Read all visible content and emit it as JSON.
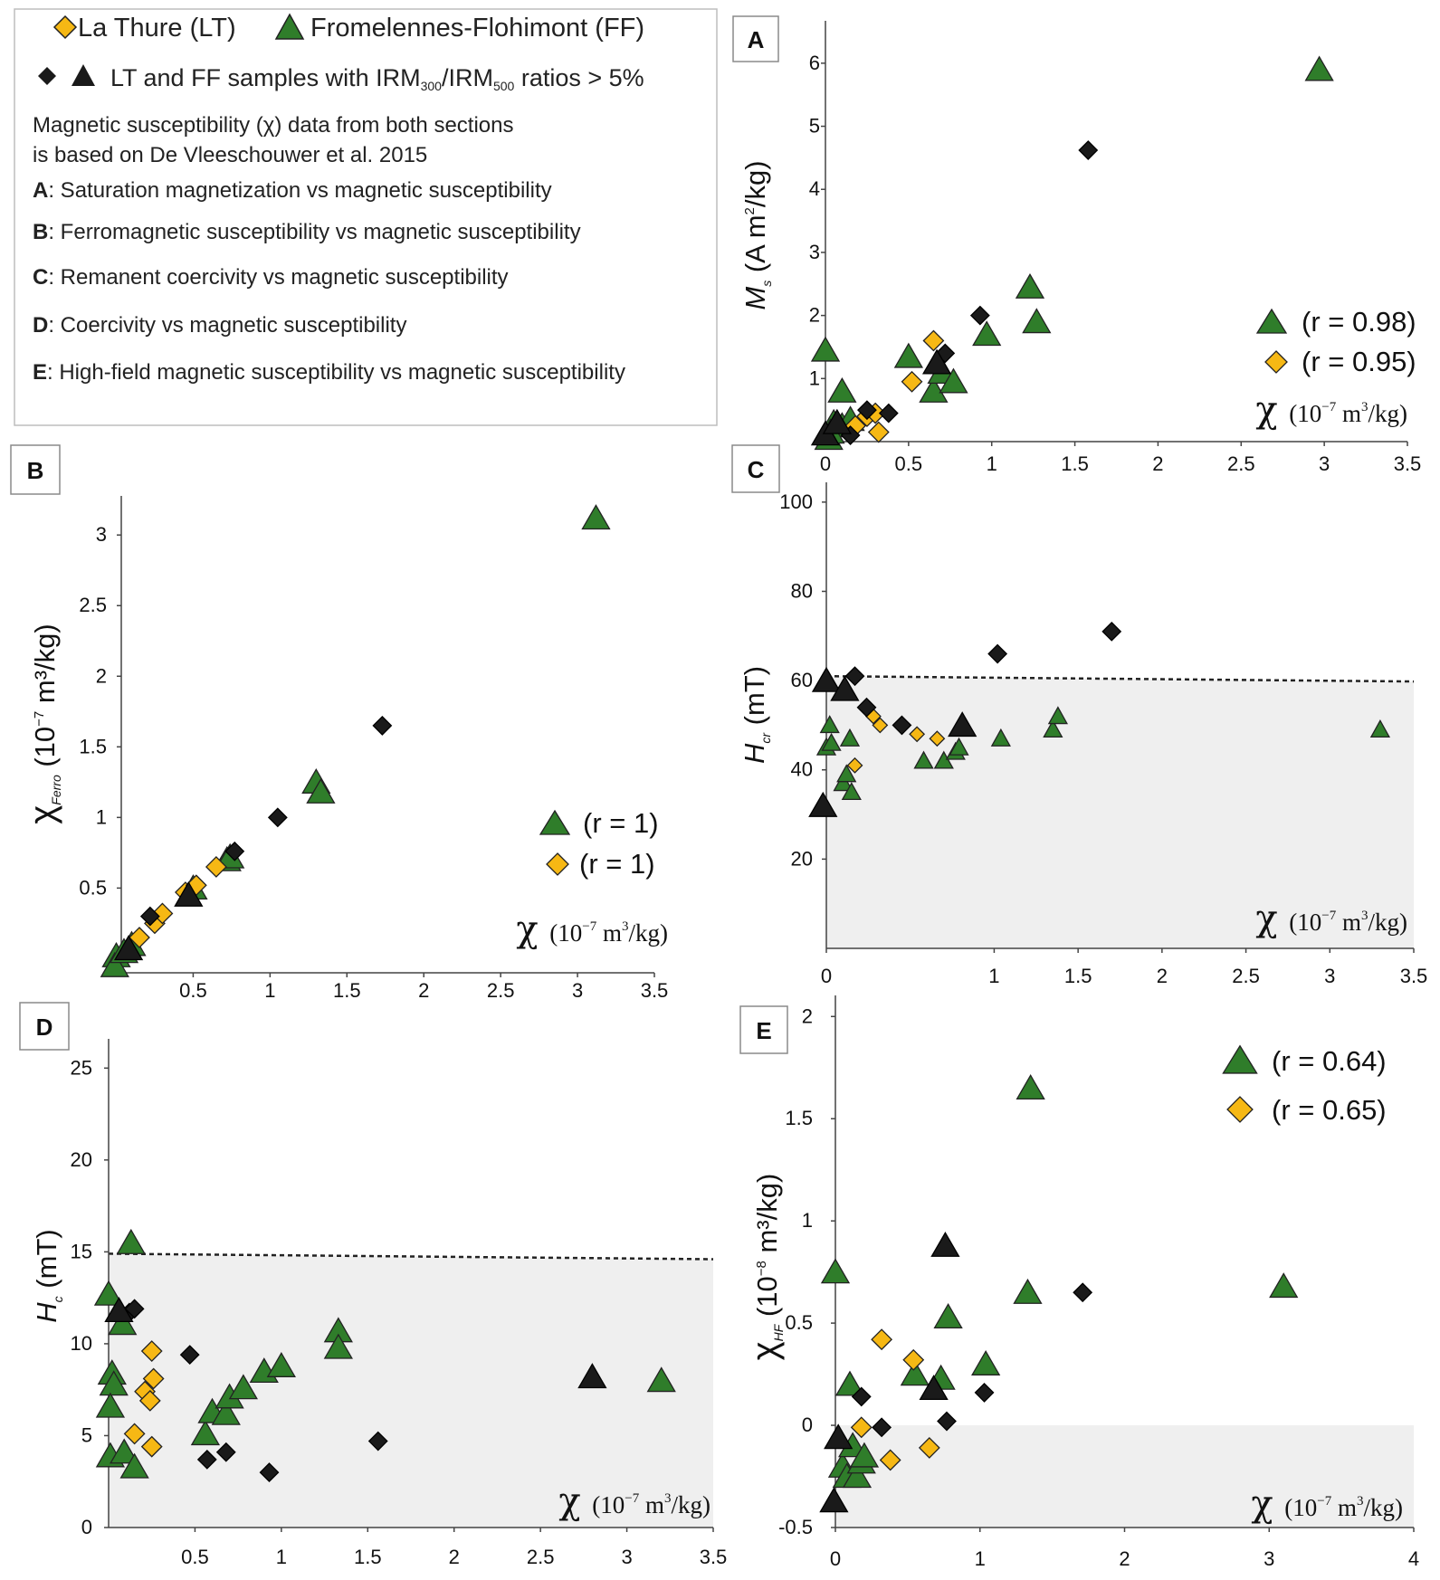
{
  "colors": {
    "lt": "#f6b814",
    "ff": "#2f7d2a",
    "dark": "#1a1a1a",
    "shade": "#efefef"
  },
  "legend": {
    "lt_label": "La Thure (LT)",
    "ff_label": "Fromelennes-Flohimont (FF)",
    "irm_prefix": "LT and FF samples with IRM",
    "irm_sub1": "300",
    "irm_slash": "/IRM",
    "irm_sub2": "500",
    "irm_suffix": " ratios > 5%",
    "note_line1": "Magnetic susceptibility (χ) data from both sections",
    "note_line2": "is based on De Vleeschouwer et al. 2015",
    "items": [
      {
        "key": "A",
        "text": ": Saturation magnetization vs magnetic susceptibility"
      },
      {
        "key": "B",
        "text": ": Ferromagnetic susceptibility vs magnetic susceptibility"
      },
      {
        "key": "C",
        "text": ": Remanent coercivity vs magnetic susceptibility"
      },
      {
        "key": "D",
        "text": ": Coercivity vs magnetic susceptibility"
      },
      {
        "key": "E",
        "text": ": High-field magnetic susceptibility vs magnetic susceptibility"
      }
    ]
  },
  "x_axis_label": {
    "chi": "χ",
    "base": "(10",
    "exp": "−7",
    "unit_pre": " m",
    "unit_exp": "3",
    "unit_post": "/kg)"
  },
  "chart_data": [
    {
      "id": "A",
      "type": "scatter",
      "ylabel": {
        "main": "M",
        "sub": "s",
        "rest": " (A m",
        "sup": "2",
        "end": "/kg)"
      },
      "xlim": [
        0,
        3.5
      ],
      "ylim": [
        0,
        6.5
      ],
      "xticks": [
        "0",
        "0.5",
        "1",
        "1.5",
        "2",
        "2.5",
        "3",
        "3.5"
      ],
      "xtick_values": [
        0,
        0.5,
        1,
        1.5,
        2,
        2.5,
        3,
        3.5
      ],
      "yticks": [
        "1",
        "2",
        "3",
        "4",
        "5",
        "6"
      ],
      "ytick_values": [
        1,
        2,
        3,
        4,
        5,
        6
      ],
      "correlations": [
        {
          "series": "FF",
          "text": "(r = 0.98)"
        },
        {
          "series": "LT",
          "text": "(r = 0.95)"
        }
      ],
      "series": [
        {
          "name": "FF",
          "marker": "triangle",
          "points": [
            [
              0,
              1.45
            ],
            [
              0.1,
              0.8
            ],
            [
              0.05,
              0.3
            ],
            [
              0.1,
              0.25
            ],
            [
              0.15,
              0.35
            ],
            [
              0.02,
              0.05
            ],
            [
              0.03,
              0.15
            ],
            [
              0.5,
              1.35
            ],
            [
              0.65,
              0.8
            ],
            [
              0.7,
              1.1
            ],
            [
              0.77,
              0.95
            ],
            [
              0.97,
              1.7
            ],
            [
              1.23,
              2.45
            ],
            [
              1.27,
              1.9
            ],
            [
              2.97,
              5.9
            ]
          ]
        },
        {
          "name": "LT",
          "marker": "diamond",
          "points": [
            [
              0.18,
              0.25
            ],
            [
              0.25,
              0.4
            ],
            [
              0.3,
              0.45
            ],
            [
              0.32,
              0.15
            ],
            [
              0.52,
              0.95
            ],
            [
              0.65,
              1.6
            ]
          ]
        },
        {
          "name": "LT/FF IRM>5%",
          "marker": "diamond-dark",
          "points": [
            [
              0.15,
              0.1
            ],
            [
              0.25,
              0.5
            ],
            [
              0.38,
              0.45
            ],
            [
              0.93,
              2.0
            ],
            [
              0.72,
              1.4
            ],
            [
              1.58,
              4.62
            ]
          ]
        },
        {
          "name": "LT/FF IRM>5%",
          "marker": "triangle-dark",
          "points": [
            [
              0,
              0.12
            ],
            [
              0.07,
              0.3
            ],
            [
              0.67,
              1.25
            ]
          ]
        }
      ]
    },
    {
      "id": "B",
      "type": "scatter",
      "ylabel": {
        "main": "χ",
        "sub": "Ferro",
        "rest": " (10",
        "sup": "−7",
        "end": " m³/kg)"
      },
      "xlim": [
        -0.05,
        3.5
      ],
      "ylim": [
        -0.1,
        3.2
      ],
      "xticks": [
        "0.5",
        "1",
        "1.5",
        "2",
        "2.5",
        "3",
        "3.5"
      ],
      "xtick_values": [
        0.5,
        1,
        1.5,
        2,
        2.5,
        3,
        3.5
      ],
      "yticks": [
        "0.5",
        "1",
        "1.5",
        "2",
        "2.5",
        "3"
      ],
      "ytick_values": [
        0.5,
        1,
        1.5,
        2,
        2.5,
        3
      ],
      "correlations": [
        {
          "series": "FF",
          "text": "(r = 1)"
        },
        {
          "series": "LT",
          "text": "(r = 1)"
        }
      ],
      "series": [
        {
          "name": "FF",
          "marker": "triangle",
          "points": [
            [
              0,
              0.02
            ],
            [
              -0.01,
              -0.05
            ],
            [
              0.05,
              0.05
            ],
            [
              0.1,
              0.1
            ],
            [
              0.5,
              0.5
            ],
            [
              0.72,
              0.7
            ],
            [
              0.74,
              0.72
            ],
            [
              1.3,
              1.25
            ],
            [
              1.33,
              1.18
            ],
            [
              3.12,
              3.12
            ]
          ]
        },
        {
          "name": "LT",
          "marker": "diamond",
          "points": [
            [
              0.15,
              0.15
            ],
            [
              0.25,
              0.25
            ],
            [
              0.3,
              0.32
            ],
            [
              0.45,
              0.47
            ],
            [
              0.52,
              0.52
            ],
            [
              0.65,
              0.65
            ]
          ]
        },
        {
          "name": "LT/FF IRM>5%",
          "marker": "diamond-dark",
          "points": [
            [
              0.22,
              0.3
            ],
            [
              0.77,
              0.76
            ],
            [
              1.05,
              1.0
            ],
            [
              1.73,
              1.65
            ]
          ]
        },
        {
          "name": "LT/FF IRM>5%",
          "marker": "triangle-dark",
          "points": [
            [
              0.08,
              0.07
            ],
            [
              0.47,
              0.45
            ]
          ]
        }
      ]
    },
    {
      "id": "C",
      "type": "scatter",
      "ylabel": {
        "main": "H",
        "sub": "cr",
        "rest": " (mT)",
        "sup": "",
        "end": ""
      },
      "xlim": [
        0,
        3.5
      ],
      "ylim": [
        0,
        102
      ],
      "xticks": [
        "0",
        "1",
        "1.5",
        "2",
        "2.5",
        "3",
        "3.5"
      ],
      "xtick_values": [
        0,
        1,
        1.5,
        2,
        2.5,
        3,
        3.5
      ],
      "yticks": [
        "20",
        "40",
        "60",
        "80",
        "100"
      ],
      "ytick_values": [
        20,
        40,
        60,
        80,
        100
      ],
      "threshold": {
        "y_start": 61,
        "y_end": 59.8,
        "label": ""
      },
      "series": [
        {
          "name": "FF",
          "marker": "triangle-small",
          "points": [
            [
              0,
              45
            ],
            [
              0.02,
              50
            ],
            [
              0.03,
              46
            ],
            [
              0.1,
              37
            ],
            [
              0.12,
              39
            ],
            [
              0.14,
              47
            ],
            [
              0.15,
              35
            ],
            [
              0.58,
              42
            ],
            [
              0.7,
              42
            ],
            [
              0.77,
              44
            ],
            [
              0.79,
              45
            ],
            [
              1.04,
              47
            ],
            [
              1.35,
              49
            ],
            [
              1.38,
              52
            ],
            [
              3.3,
              49
            ]
          ]
        },
        {
          "name": "LT",
          "marker": "diamond-small",
          "points": [
            [
              0.17,
              41
            ],
            [
              0.28,
              52
            ],
            [
              0.32,
              50
            ],
            [
              0.54,
              48
            ],
            [
              0.66,
              47
            ]
          ]
        },
        {
          "name": "LT/FF IRM>5%",
          "marker": "diamond-dark",
          "points": [
            [
              0.17,
              61
            ],
            [
              0.24,
              54
            ],
            [
              0.45,
              50
            ],
            [
              1.02,
              66
            ],
            [
              1.7,
              71
            ]
          ]
        },
        {
          "name": "LT/FF IRM>5%",
          "marker": "triangle-dark",
          "points": [
            [
              0,
              60
            ],
            [
              0.11,
              58
            ],
            [
              -0.02,
              32
            ],
            [
              0.81,
              50
            ]
          ]
        }
      ]
    },
    {
      "id": "D",
      "type": "scatter",
      "ylabel": {
        "main": "H",
        "sub": "c",
        "rest": " (mT)",
        "sup": "",
        "end": ""
      },
      "xlim": [
        0,
        3.5
      ],
      "ylim": [
        0,
        26
      ],
      "xticks": [
        "0.5",
        "1",
        "1.5",
        "2",
        "2.5",
        "3",
        "3.5"
      ],
      "xtick_values": [
        0.5,
        1,
        1.5,
        2,
        2.5,
        3,
        3.5
      ],
      "yticks": [
        "0",
        "5",
        "10",
        "15",
        "20",
        "25"
      ],
      "ytick_values": [
        0,
        5,
        10,
        15,
        20,
        25
      ],
      "threshold": {
        "y_start": 14.9,
        "y_end": 14.6,
        "label": ""
      },
      "series": [
        {
          "name": "FF",
          "marker": "triangle",
          "points": [
            [
              0,
              12.7
            ],
            [
              0.02,
              8.4
            ],
            [
              0.03,
              7.8
            ],
            [
              0.01,
              6.6
            ],
            [
              0.01,
              3.9
            ],
            [
              0.08,
              11.1
            ],
            [
              0.09,
              4.1
            ],
            [
              0.15,
              3.3
            ],
            [
              0.13,
              15.5
            ],
            [
              0.56,
              5.1
            ],
            [
              0.6,
              6.3
            ],
            [
              0.68,
              6.2
            ],
            [
              0.7,
              7.1
            ],
            [
              0.78,
              7.6
            ],
            [
              0.9,
              8.5
            ],
            [
              1.0,
              8.8
            ],
            [
              1.33,
              10.7
            ],
            [
              1.33,
              9.8
            ],
            [
              3.2,
              8.0
            ]
          ]
        },
        {
          "name": "LT",
          "marker": "diamond",
          "points": [
            [
              0.15,
              5.1
            ],
            [
              0.21,
              7.4
            ],
            [
              0.24,
              6.9
            ],
            [
              0.25,
              9.6
            ],
            [
              0.26,
              8.1
            ],
            [
              0.25,
              4.4
            ]
          ]
        },
        {
          "name": "LT/FF IRM>5%",
          "marker": "diamond-dark",
          "points": [
            [
              0.12,
              11.7
            ],
            [
              0.15,
              11.9
            ],
            [
              0.47,
              9.4
            ],
            [
              0.57,
              3.7
            ],
            [
              0.68,
              4.1
            ],
            [
              0.93,
              3.0
            ],
            [
              1.56,
              4.7
            ]
          ]
        },
        {
          "name": "LT/FF IRM>5%",
          "marker": "triangle-dark",
          "points": [
            [
              0.06,
              11.8
            ],
            [
              2.8,
              8.2
            ]
          ]
        }
      ]
    },
    {
      "id": "E",
      "type": "scatter",
      "ylabel": {
        "main": "χ",
        "sub": "HF",
        "rest": " (10",
        "sup": "−8",
        "end": " m³/kg)"
      },
      "xlim": [
        -0.05,
        4
      ],
      "ylim": [
        -0.5,
        2.05
      ],
      "xticks": [
        "0",
        "1",
        "2",
        "3",
        "4"
      ],
      "xtick_values": [
        0,
        1,
        2,
        3,
        4
      ],
      "yticks": [
        "-0.5",
        "0",
        "0.5",
        "1",
        "1.5",
        "2"
      ],
      "ytick_values": [
        -0.5,
        0,
        0.5,
        1,
        1.5,
        2
      ],
      "correlations": [
        {
          "series": "FF",
          "text": "(r = 0.64)"
        },
        {
          "series": "LT",
          "text": "(r = 0.65)"
        }
      ],
      "series": [
        {
          "name": "FF",
          "marker": "triangle",
          "points": [
            [
              0,
              0.75
            ],
            [
              0.1,
              0.2
            ],
            [
              0.05,
              -0.2
            ],
            [
              0.08,
              -0.25
            ],
            [
              0.12,
              -0.1
            ],
            [
              0.15,
              -0.25
            ],
            [
              0.18,
              -0.18
            ],
            [
              0.2,
              -0.15
            ],
            [
              0.55,
              0.25
            ],
            [
              0.73,
              0.23
            ],
            [
              0.78,
              0.53
            ],
            [
              1.04,
              0.3
            ],
            [
              1.33,
              0.65
            ],
            [
              1.35,
              1.65
            ],
            [
              3.1,
              0.68
            ]
          ]
        },
        {
          "name": "LT",
          "marker": "diamond",
          "points": [
            [
              0.18,
              -0.01
            ],
            [
              0.32,
              0.42
            ],
            [
              0.38,
              -0.17
            ],
            [
              0.54,
              0.32
            ],
            [
              0.65,
              -0.11
            ]
          ]
        },
        {
          "name": "LT/FF IRM>5%",
          "marker": "diamond-dark",
          "points": [
            [
              0.18,
              0.14
            ],
            [
              0.32,
              -0.01
            ],
            [
              0.77,
              0.02
            ],
            [
              1.03,
              0.16
            ],
            [
              1.71,
              0.65
            ]
          ]
        },
        {
          "name": "LT/FF IRM>5%",
          "marker": "triangle-dark",
          "points": [
            [
              -0.01,
              -0.37
            ],
            [
              0.02,
              -0.06
            ],
            [
              0.68,
              0.18
            ],
            [
              0.76,
              0.88
            ]
          ]
        }
      ]
    }
  ]
}
